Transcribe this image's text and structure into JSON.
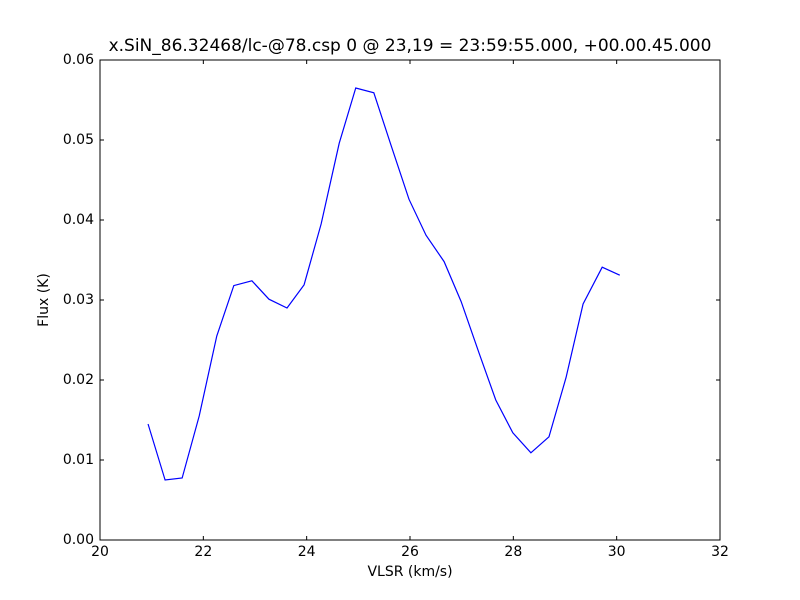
{
  "chart_data": {
    "type": "line",
    "title": "x.SiN_86.32468/lc-@78.csp 0 @ 23,19 = 23:59:55.000, +00.00.45.000",
    "xlabel": "VLSR (km/s)",
    "ylabel": "Flux (K)",
    "x": [
      20.93,
      21.26,
      21.59,
      21.92,
      22.26,
      22.59,
      22.94,
      23.27,
      23.62,
      23.95,
      24.28,
      24.63,
      24.95,
      25.3,
      25.63,
      25.98,
      26.31,
      26.66,
      26.99,
      27.34,
      27.66,
      27.99,
      28.34,
      28.69,
      29.02,
      29.35,
      29.72,
      30.06
    ],
    "series": [
      {
        "color": "#0000ff",
        "values": [
          0.0145,
          0.0075,
          0.00775,
          0.0155,
          0.0255,
          0.0318,
          0.0324,
          0.0301,
          0.029,
          0.0319,
          0.0395,
          0.0496,
          0.0565,
          0.0559,
          0.0494,
          0.0426,
          0.0381,
          0.0348,
          0.0298,
          0.0233,
          0.0175,
          0.0134,
          0.0109,
          0.0129,
          0.0203,
          0.0295,
          0.0341,
          0.0331
        ]
      }
    ],
    "xlim": [
      20,
      32
    ],
    "xticks": [
      20,
      22,
      24,
      26,
      28,
      30,
      32
    ],
    "ylim": [
      0,
      0.06
    ],
    "yticks": [
      {
        "value": 0,
        "label": "0.00"
      },
      0.01,
      0.02,
      0.03,
      0.04,
      0.05,
      0.06
    ],
    "grid": false
  }
}
